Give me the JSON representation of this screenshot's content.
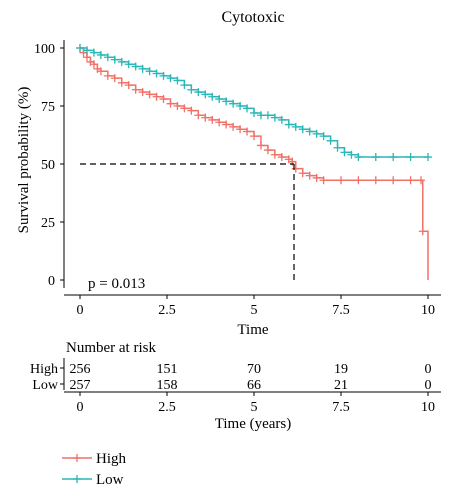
{
  "chart_data": {
    "type": "line",
    "title": "Cytotoxic",
    "xlabel": "Time",
    "ylabel": "Survival probability (%)",
    "xlim": [
      0,
      10
    ],
    "ylim": [
      0,
      100
    ],
    "x_ticks": [
      "0",
      "2.5",
      "5",
      "7.5",
      "10"
    ],
    "y_ticks": [
      "100",
      "75",
      "50",
      "25",
      "0"
    ],
    "grid": false,
    "annotation": "p = 0.013",
    "median_survival": {
      "series": "High",
      "x": 6.15,
      "y": 50
    },
    "colors": {
      "High": "#f07167",
      "Low": "#2ab7b7",
      "axis": "#000000"
    },
    "series": [
      {
        "name": "High",
        "color": "#f07167",
        "x": [
          0,
          0.1,
          0.2,
          0.3,
          0.4,
          0.5,
          0.6,
          0.8,
          1.0,
          1.2,
          1.4,
          1.6,
          1.8,
          2.0,
          2.2,
          2.4,
          2.6,
          2.8,
          3.0,
          3.2,
          3.4,
          3.6,
          3.8,
          4.0,
          4.2,
          4.4,
          4.6,
          4.8,
          5.0,
          5.2,
          5.4,
          5.6,
          5.8,
          6.0,
          6.1,
          6.2,
          6.4,
          6.6,
          6.8,
          7.0,
          7.5,
          8.0,
          8.5,
          9.0,
          9.5,
          9.8,
          9.85,
          10.0
        ],
        "y": [
          100,
          98,
          96,
          94,
          93,
          91,
          90,
          88,
          87,
          85,
          84,
          82,
          81,
          80,
          79,
          78,
          76,
          75,
          74,
          73,
          71,
          70,
          69,
          68,
          67,
          66,
          65,
          64,
          62,
          58,
          56,
          54,
          53,
          52,
          51,
          48,
          46,
          45,
          44,
          43,
          43,
          43,
          43,
          43,
          43,
          43,
          21,
          0
        ]
      },
      {
        "name": "Low",
        "color": "#2ab7b7",
        "x": [
          0,
          0.2,
          0.4,
          0.6,
          0.8,
          1.0,
          1.2,
          1.4,
          1.6,
          1.8,
          2.0,
          2.2,
          2.4,
          2.6,
          2.8,
          3.0,
          3.2,
          3.4,
          3.6,
          3.8,
          4.0,
          4.2,
          4.4,
          4.6,
          4.8,
          5.0,
          5.2,
          5.4,
          5.6,
          5.8,
          6.0,
          6.2,
          6.4,
          6.6,
          6.8,
          7.0,
          7.2,
          7.4,
          7.6,
          7.8,
          8.0,
          8.5,
          9.0,
          9.5,
          10.0
        ],
        "y": [
          100,
          99,
          98,
          97,
          96,
          95,
          94,
          93,
          92,
          91,
          90,
          89,
          88,
          87,
          86,
          84,
          82,
          81,
          80,
          79,
          78,
          77,
          76,
          75,
          74,
          72,
          71,
          71,
          70,
          69,
          67,
          66,
          65,
          64,
          63,
          62,
          60,
          57,
          55,
          54,
          53,
          53,
          53,
          53,
          53
        ]
      }
    ],
    "risk_table": {
      "title": "Number at risk",
      "xlabel": "Time (years)",
      "x_ticks": [
        "0",
        "2.5",
        "5",
        "7.5",
        "10"
      ],
      "rows": [
        {
          "name": "High",
          "color": "#f07167",
          "values": [
            "256",
            "151",
            "70",
            "19",
            "0"
          ]
        },
        {
          "name": "Low",
          "color": "#2ab7b7",
          "values": [
            "257",
            "158",
            "66",
            "21",
            "0"
          ]
        }
      ]
    },
    "legend": {
      "position": "bottom-left",
      "items": [
        {
          "name": "High",
          "color": "#f07167"
        },
        {
          "name": "Low",
          "color": "#2ab7b7"
        }
      ]
    }
  }
}
